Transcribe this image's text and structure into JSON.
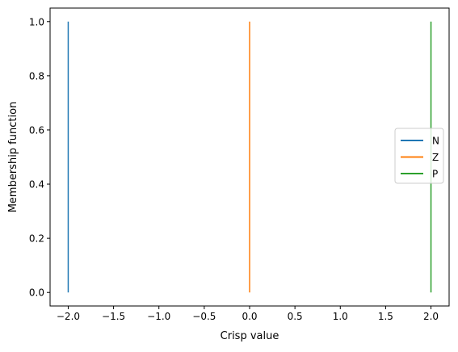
{
  "chart_data": {
    "type": "line",
    "title": "",
    "xlabel": "Crisp value",
    "ylabel": "Membership function",
    "xlim": [
      -2.2,
      2.2
    ],
    "ylim": [
      -0.05,
      1.05
    ],
    "xticks": [
      -2.0,
      -1.5,
      -1.0,
      -0.5,
      0.0,
      0.5,
      1.0,
      1.5,
      2.0
    ],
    "xtick_labels": [
      "−2.0",
      "−1.5",
      "−1.0",
      "−0.5",
      "0.0",
      "0.5",
      "1.0",
      "1.5",
      "2.0"
    ],
    "yticks": [
      0.0,
      0.2,
      0.4,
      0.6,
      0.8,
      1.0
    ],
    "ytick_labels": [
      "0.0",
      "0.2",
      "0.4",
      "0.6",
      "0.8",
      "1.0"
    ],
    "grid": false,
    "legend": {
      "position": "right",
      "entries": [
        "N",
        "Z",
        "P"
      ]
    },
    "series": [
      {
        "name": "N",
        "color": "#1f77b4",
        "x": [
          -2.0,
          -2.0
        ],
        "y": [
          0.0,
          1.0
        ]
      },
      {
        "name": "Z",
        "color": "#ff7f0e",
        "x": [
          0.0,
          0.0
        ],
        "y": [
          0.0,
          1.0
        ]
      },
      {
        "name": "P",
        "color": "#2ca02c",
        "x": [
          2.0,
          2.0
        ],
        "y": [
          0.0,
          1.0
        ]
      }
    ]
  }
}
